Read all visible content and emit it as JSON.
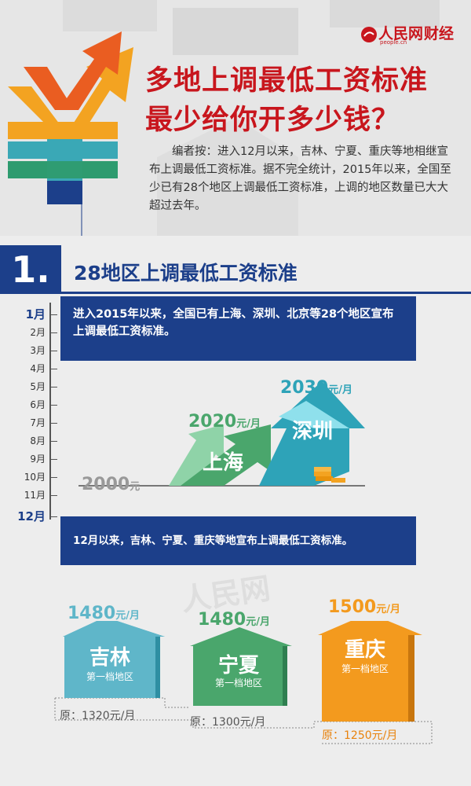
{
  "header": {
    "logo_text": "人民网",
    "logo_sub": "people.cn",
    "category": "财经",
    "title_line1": "多地上调最低工资标准",
    "title_line2": "最少给你开多少钱？",
    "editor_note": "编者按：进入12月以来，吉林、宁夏、重庆等地相继宣布上调最低工资标准。据不完全统计，2015年以来，全国至少已有28个地区上调最低工资标准，上调的地区数量已大大超过去年。"
  },
  "section1": {
    "number": "1.",
    "title": "28地区上调最低工资标准",
    "months": [
      "1月",
      "2月",
      "3月",
      "4月",
      "5月",
      "6月",
      "7月",
      "8月",
      "9月",
      "10月",
      "11月",
      "12月"
    ],
    "box_top": "进入2015年以来，全国已有上海、深圳、北京等28个地区宣布上调最低工资标准。",
    "box_bottom": "12月以来，吉林、宁夏、重庆等地宣布上调最低工资标准。",
    "base_wage": {
      "num": "2000",
      "unit": "元"
    },
    "shanghai": {
      "name": "上海",
      "num": "2020",
      "unit": "元/月"
    },
    "shenzhen": {
      "name": "深圳",
      "num": "2030",
      "unit": "元/月"
    }
  },
  "regions": [
    {
      "name": "吉林",
      "tier": "第一档地区",
      "num": "1480",
      "unit": "元/月",
      "orig": "原：1320元/月"
    },
    {
      "name": "宁夏",
      "tier": "第一档地区",
      "num": "1480",
      "unit": "元/月",
      "orig": "原：1300元/月"
    },
    {
      "name": "重庆",
      "tier": "第一档地区",
      "num": "1500",
      "unit": "元/月",
      "orig": "原：1250元/月"
    }
  ],
  "watermarks": {
    "text": "人民网",
    "sub": "people.cn"
  },
  "colors": {
    "brand_red": "#c8161d",
    "navy": "#1c3f8a",
    "teal": "#5aa9b6",
    "green": "#4a9e6e",
    "orange": "#f39a1e",
    "light_green_arrow": "#8fd3a8",
    "cyan_arrow": "#6fc7d9"
  }
}
